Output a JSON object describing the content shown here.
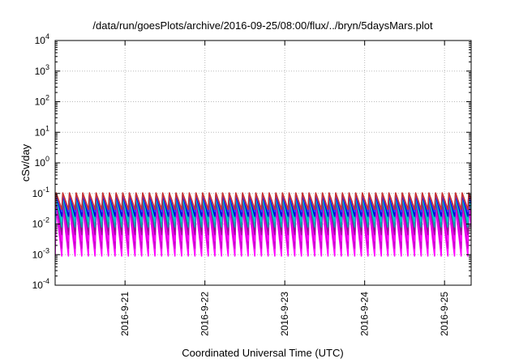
{
  "chart_data": {
    "type": "line",
    "title": "/data/run/goesPlots/archive/2016-09-25/08:00/flux/../bryn/5daysMars.plot",
    "xlabel": "Coordinated Universal Time (UTC)",
    "ylabel": "cSv/day",
    "x_type": "date",
    "xlim": [
      "2016-09-20T03:00",
      "2016-09-25T08:00"
    ],
    "x_ticks": [
      "2016-9-21",
      "2016-9-22",
      "2016-9-23",
      "2016-9-24",
      "2016-9-25"
    ],
    "y_scale": "log",
    "ylim": [
      0.0001,
      10000
    ],
    "y_ticks": [
      {
        "base": "10",
        "exp": "-4"
      },
      {
        "base": "10",
        "exp": "-3"
      },
      {
        "base": "10",
        "exp": "-2"
      },
      {
        "base": "10",
        "exp": "-1"
      },
      {
        "base": "10",
        "exp": "0"
      },
      {
        "base": "10",
        "exp": "1"
      },
      {
        "base": "10",
        "exp": "2"
      },
      {
        "base": "10",
        "exp": "3"
      },
      {
        "base": "10",
        "exp": "4"
      }
    ],
    "grid": true,
    "grid_style": "dotted",
    "legend": "none",
    "pattern": {
      "kind": "sawtooth",
      "period_hours": 2.0,
      "peak_time_fraction": 0.15
    },
    "series": [
      {
        "color": "#ff00ff",
        "peak": 0.036,
        "trough": 0.0009
      },
      {
        "color": "#cc00cc",
        "peak": 0.045,
        "trough": 0.0016
      },
      {
        "color": "#ff00ff",
        "peak": 0.055,
        "trough": 0.0028
      },
      {
        "color": "#aa00aa",
        "peak": 0.06,
        "trough": 0.0045
      },
      {
        "color": "#8b1a8b",
        "peak": 0.07,
        "trough": 0.006
      },
      {
        "color": "#00aaaa",
        "peak": 0.075,
        "trough": 0.008
      },
      {
        "color": "#00c8c8",
        "peak": 0.08,
        "trough": 0.012
      },
      {
        "color": "#0000dd",
        "peak": 0.09,
        "trough": 0.018
      },
      {
        "color": "#4040ff",
        "peak": 0.095,
        "trough": 0.025
      },
      {
        "color": "#c83232",
        "peak": 0.105,
        "trough": 0.03
      }
    ]
  }
}
